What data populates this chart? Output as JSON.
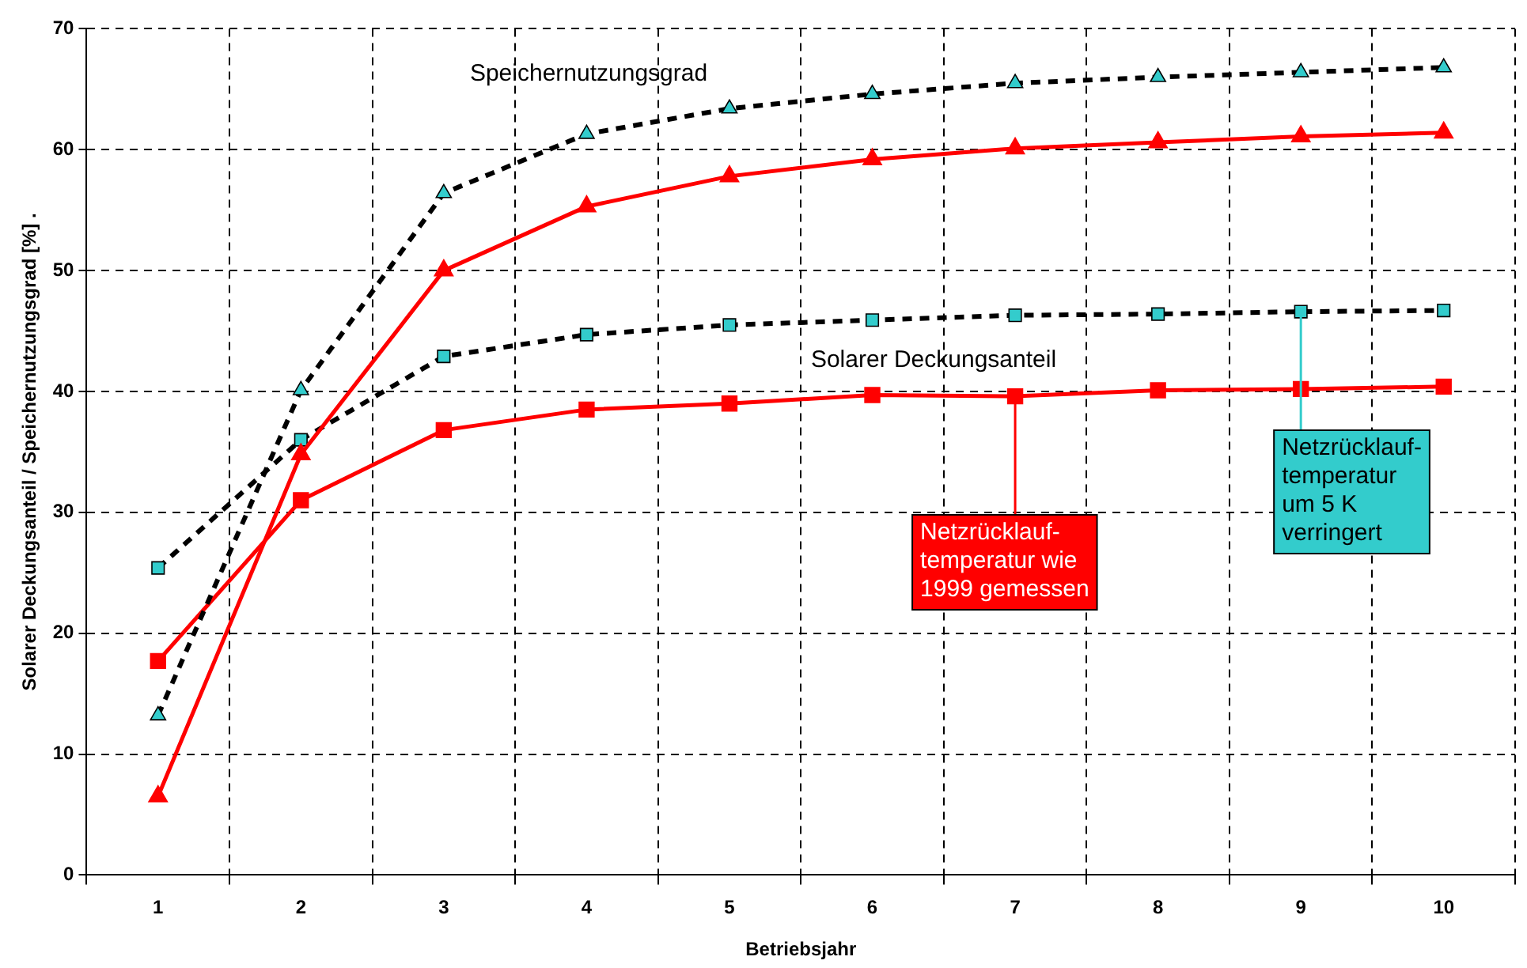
{
  "chart_data": {
    "type": "line",
    "categories": [
      "1",
      "2",
      "3",
      "4",
      "5",
      "6",
      "7",
      "8",
      "9",
      "10"
    ],
    "xlabel": "Betriebsjahr",
    "ylabel": "Solarer Deckungsanteil / Speichernutzungsgrad [%] .",
    "ylim": [
      0,
      70
    ],
    "yticks": [
      0,
      10,
      20,
      30,
      40,
      50,
      60,
      70
    ],
    "grid": true,
    "legend": false,
    "series": [
      {
        "color": "#ff0000",
        "marker": "triangle",
        "line_style": "solid",
        "values": [
          6.5,
          34.8,
          50.0,
          55.3,
          57.8,
          59.2,
          60.1,
          60.6,
          61.1,
          61.4
        ]
      },
      {
        "color": "#33cccc",
        "marker": "triangle",
        "line_style": "dashed",
        "values": [
          13.2,
          40.1,
          56.4,
          61.3,
          63.4,
          64.6,
          65.5,
          66.0,
          66.4,
          66.8
        ]
      },
      {
        "color": "#ff0000",
        "marker": "square",
        "line_style": "solid",
        "values": [
          17.7,
          31.0,
          36.8,
          38.5,
          39.0,
          39.7,
          39.6,
          40.1,
          40.2,
          40.4
        ]
      },
      {
        "color": "#33cccc",
        "marker": "square",
        "line_style": "dashed",
        "values": [
          25.4,
          36.0,
          42.9,
          44.7,
          45.5,
          45.9,
          46.3,
          46.4,
          46.6,
          46.7
        ]
      }
    ],
    "annotations": [
      "Speichernutzungsgrad",
      "Solarer Deckungsanteil",
      {
        "text": "Netzrücklauf-temperatur wie 1999 gemessen",
        "x": "7",
        "y": 39.6
      },
      {
        "text": "Netzrücklauf-temperatur um 5 K verringert",
        "x": "9",
        "y": 46.6
      }
    ]
  }
}
